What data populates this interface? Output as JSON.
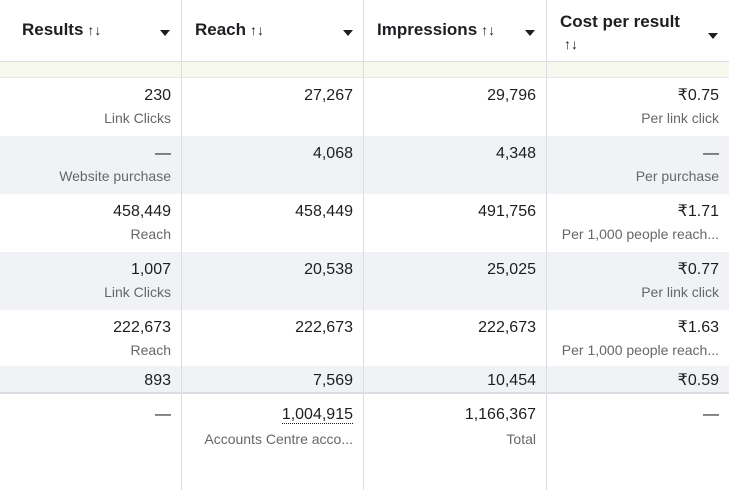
{
  "header": {
    "columns": [
      {
        "label": "Results",
        "sort": "↑↓"
      },
      {
        "label": "Reach",
        "sort": "↑↓"
      },
      {
        "label": "Impressions",
        "sort": "↑↓"
      },
      {
        "label": "Cost per result",
        "sort": "↑↓"
      }
    ]
  },
  "rows": [
    {
      "results": "230",
      "results_sub": "Link Clicks",
      "reach": "27,267",
      "impressions": "29,796",
      "cost": "₹0.75",
      "cost_sub": "Per link click"
    },
    {
      "results": "—",
      "results_sub": "Website purchase",
      "reach": "4,068",
      "impressions": "4,348",
      "cost": "—",
      "cost_sub": "Per purchase"
    },
    {
      "results": "458,449",
      "results_sub": "Reach",
      "reach": "458,449",
      "impressions": "491,756",
      "cost": "₹1.71",
      "cost_sub": "Per 1,000 people reach..."
    },
    {
      "results": "1,007",
      "results_sub": "Link Clicks",
      "reach": "20,538",
      "impressions": "25,025",
      "cost": "₹0.77",
      "cost_sub": "Per link click"
    },
    {
      "results": "222,673",
      "results_sub": "Reach",
      "reach": "222,673",
      "impressions": "222,673",
      "cost": "₹1.63",
      "cost_sub": "Per 1,000 people reach..."
    },
    {
      "results": "893",
      "results_sub": "",
      "reach": "7,569",
      "impressions": "10,454",
      "cost": "₹0.59",
      "cost_sub": ""
    }
  ],
  "footer": {
    "results": "—",
    "reach": "1,004,915",
    "reach_sub": "Accounts Centre acco...",
    "impressions": "1,166,367",
    "impressions_sub": "Total",
    "cost": "—"
  }
}
